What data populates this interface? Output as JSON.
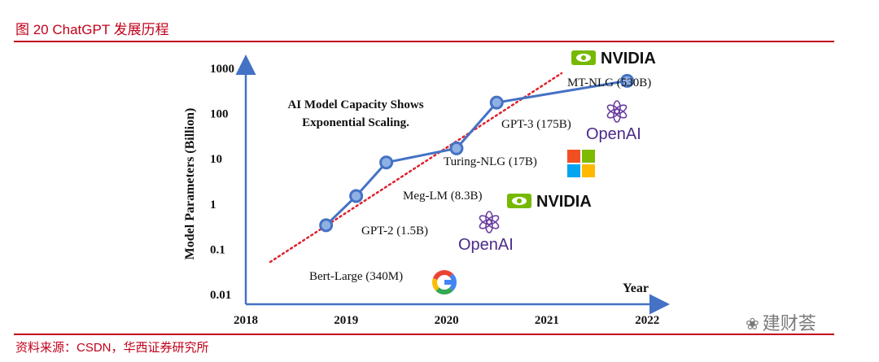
{
  "page": {
    "figure_title": "图 20 ChatGPT 发展历程",
    "source": "资料来源：CSDN，华西证券研究所",
    "watermark": "建财荟"
  },
  "chart_data": {
    "type": "scatter",
    "title": "AI Model Capacity Shows Exponential Scaling.",
    "xlabel": "Year",
    "ylabel": "Model Parameters (Billion)",
    "yscale": "log",
    "xlim": [
      2018,
      2022
    ],
    "ylim": [
      0.01,
      1000
    ],
    "x_ticks": [
      2018,
      2019,
      2020,
      2021,
      2022
    ],
    "y_ticks": [
      0.01,
      0.1,
      1,
      10,
      100,
      1000
    ],
    "y_tick_labels": [
      "0.01",
      "0.1",
      "1",
      "10",
      "100",
      "1000"
    ],
    "series": [
      {
        "points": [
          {
            "x": 2018.8,
            "y": 0.34,
            "label": "Bert-Large (340M)",
            "logo": "google-logo"
          },
          {
            "x": 2019.1,
            "y": 1.5,
            "label": "GPT-2 (1.5B)",
            "logo": "openai-logo"
          },
          {
            "x": 2019.4,
            "y": 8.3,
            "label": "Meg-LM (8.3B)",
            "logo": "nvidia-logo"
          },
          {
            "x": 2020.1,
            "y": 17,
            "label": "Turing-NLG (17B)",
            "logo": "microsoft-logo"
          },
          {
            "x": 2020.5,
            "y": 175,
            "label": "GPT-3 (175B)",
            "logo": "openai-logo"
          },
          {
            "x": 2021.8,
            "y": 530,
            "label": "MT-NLG (530B)",
            "logo": "nvidia-logo"
          }
        ],
        "color": "#4472c4"
      }
    ],
    "trendline": {
      "style": "dotted",
      "color": "#e0202a"
    },
    "logo_text": {
      "nvidia": "NVIDIA",
      "openai": "OpenAI"
    },
    "colors": {
      "accent": "#c0001a",
      "series": "#4472c4",
      "marker_fill": "#8fb0e3",
      "trend": "#e0202a"
    }
  }
}
